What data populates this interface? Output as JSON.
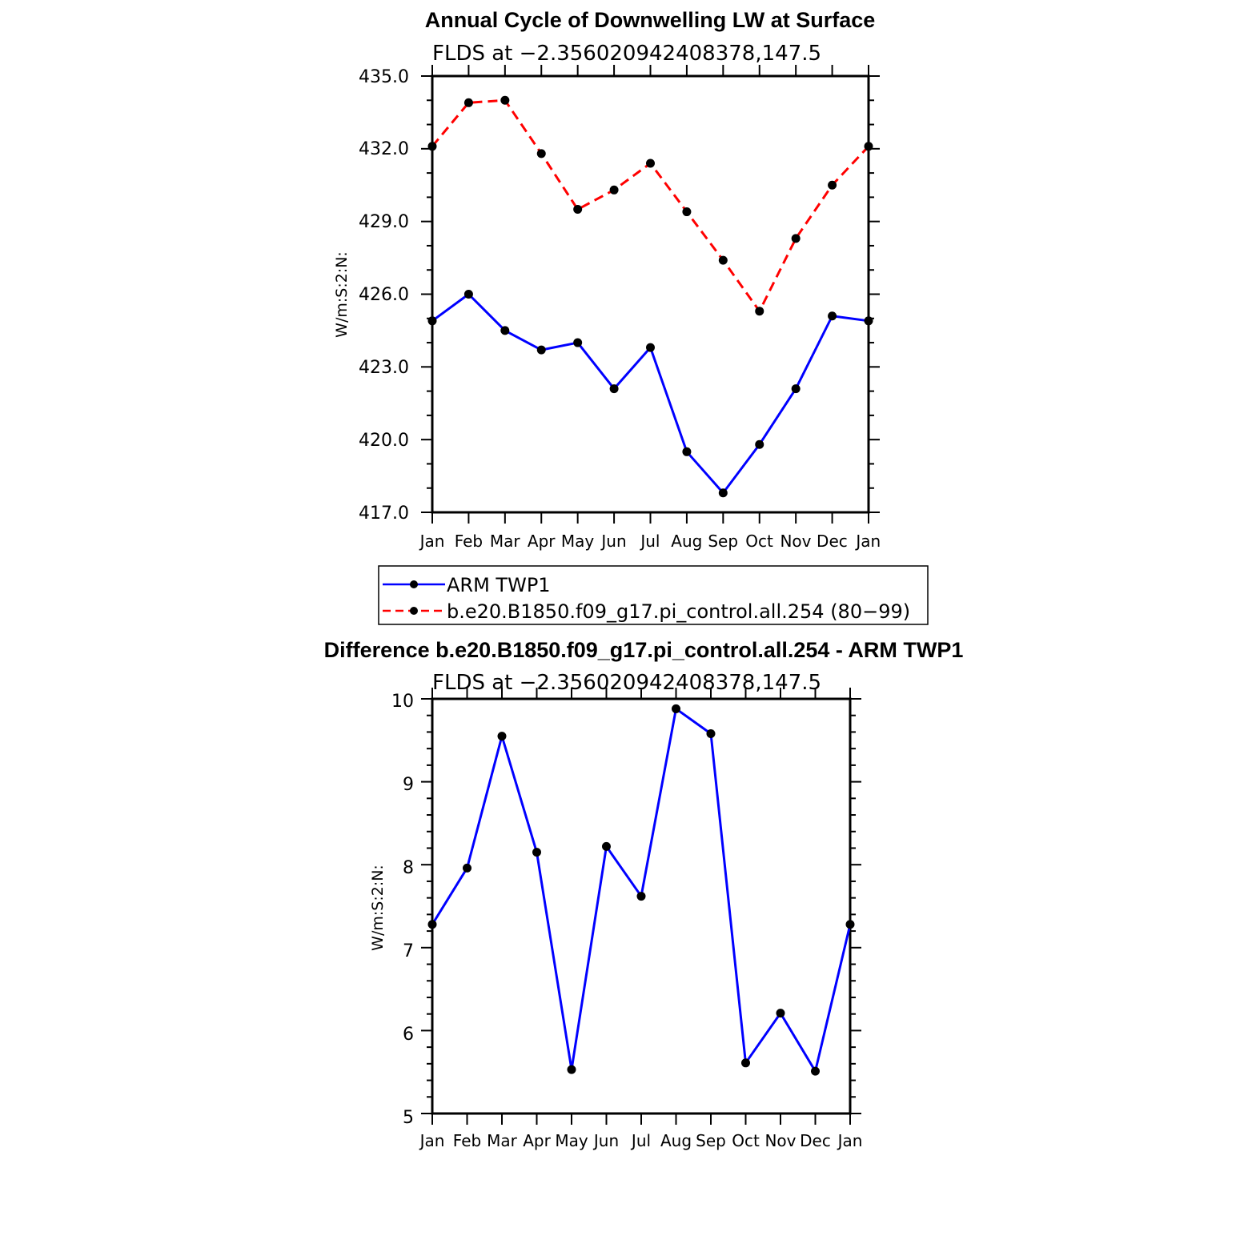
{
  "chart_data": [
    {
      "type": "line",
      "title": "Annual Cycle of Downwelling LW at Surface",
      "subtitle": "FLDS at −2.356020942408378,147.5",
      "ylabel": "W/m:S:2:N:",
      "xlabel": "",
      "categories": [
        "Jan",
        "Feb",
        "Mar",
        "Apr",
        "May",
        "Jun",
        "Jul",
        "Aug",
        "Sep",
        "Oct",
        "Nov",
        "Dec",
        "Jan"
      ],
      "ylim": [
        417.0,
        435.0
      ],
      "yticks": [
        "417.0",
        "420.0",
        "423.0",
        "426.0",
        "429.0",
        "432.0",
        "435.0"
      ],
      "grid": false,
      "series": [
        {
          "name": "ARM TWP1",
          "color": "#0000ff",
          "dash": "solid",
          "values": [
            424.9,
            426.0,
            424.5,
            423.7,
            424.0,
            422.1,
            423.8,
            419.5,
            417.8,
            419.8,
            422.1,
            425.1,
            424.9
          ]
        },
        {
          "name": "b.e20.B1850.f09_g17.pi_control.all.254 (80−99)",
          "color": "#ff0000",
          "dash": "dashed",
          "values": [
            432.1,
            433.9,
            434.0,
            431.8,
            429.5,
            430.3,
            431.4,
            429.4,
            427.4,
            425.3,
            428.3,
            430.5,
            432.1
          ]
        }
      ],
      "legend": {
        "position": "bottom",
        "entries": [
          "ARM TWP1",
          "b.e20.B1850.f09_g17.pi_control.all.254 (80−99)"
        ]
      }
    },
    {
      "type": "line",
      "title": "Difference b.e20.B1850.f09_g17.pi_control.all.254 - ARM TWP1",
      "subtitle": "FLDS at −2.356020942408378,147.5",
      "ylabel": "W/m:S:2:N:",
      "xlabel": "",
      "categories": [
        "Jan",
        "Feb",
        "Mar",
        "Apr",
        "May",
        "Jun",
        "Jul",
        "Aug",
        "Sep",
        "Oct",
        "Nov",
        "Dec",
        "Jan"
      ],
      "ylim": [
        5,
        10
      ],
      "yticks": [
        "5",
        "6",
        "7",
        "8",
        "9",
        "10"
      ],
      "grid": false,
      "series": [
        {
          "color": "#0000ff",
          "dash": "solid",
          "values": [
            7.28,
            7.96,
            9.55,
            8.15,
            5.53,
            8.22,
            7.62,
            9.88,
            9.58,
            5.61,
            6.21,
            5.51,
            7.28
          ]
        }
      ]
    }
  ]
}
